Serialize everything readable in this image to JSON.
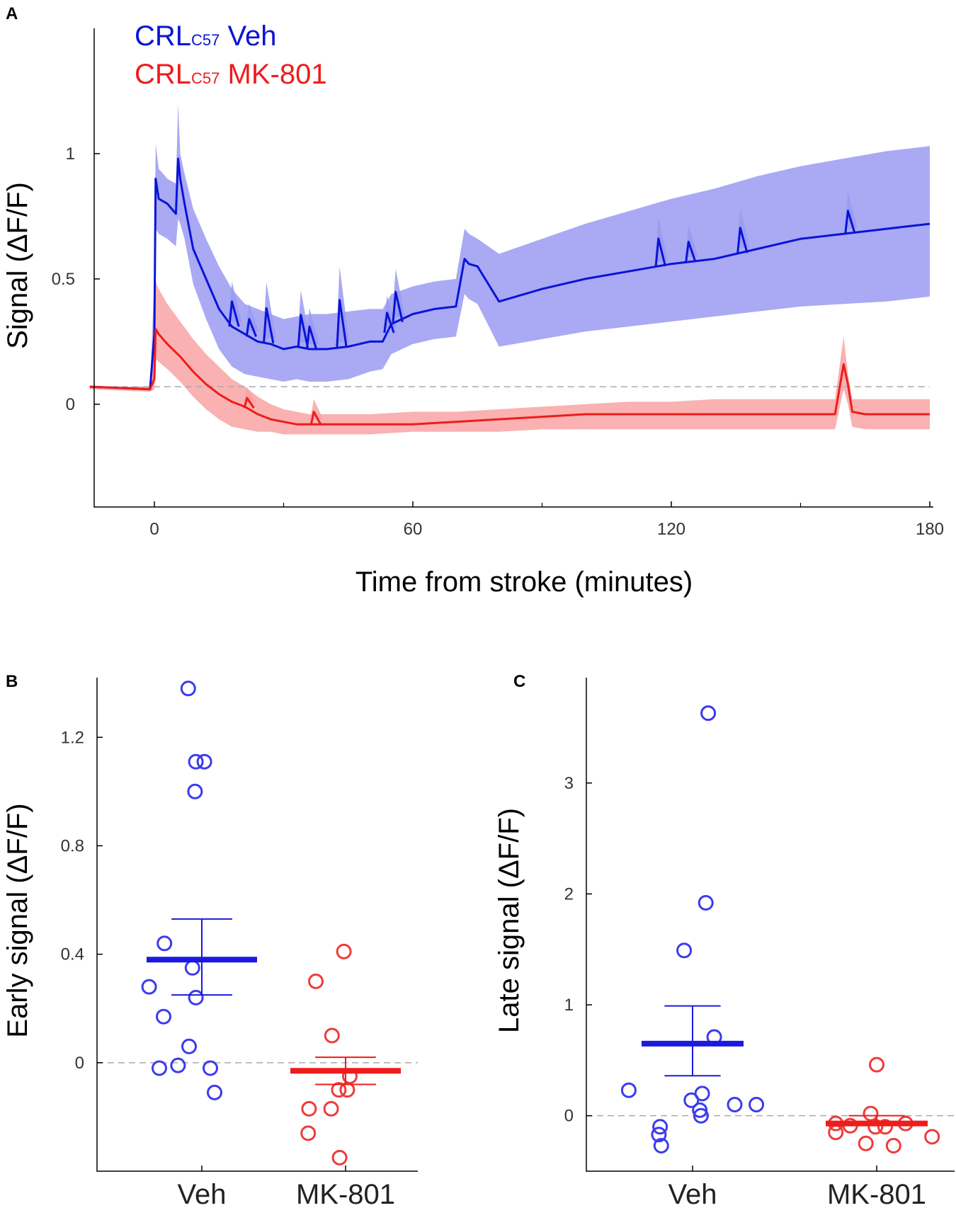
{
  "chart_data": [
    {
      "panel": "A",
      "type": "line",
      "xlabel": "Time from stroke (minutes)",
      "ylabel": "Signal (ΔF/F)",
      "xlim": [
        -15,
        181
      ],
      "ylim": [
        -0.41,
        1.5
      ],
      "xticks": [
        0,
        60,
        120,
        180
      ],
      "yticks": [
        0,
        0.5,
        1
      ],
      "xtick_labels": [
        "0",
        "60",
        "120",
        "180"
      ],
      "ytick_labels": [
        "0",
        "0.5",
        "1"
      ],
      "legend": [
        {
          "main": "CRL",
          "sub": "C57",
          "rest": " Veh",
          "color": "#0a14d6"
        },
        {
          "main": "CRL",
          "sub": "C57",
          "rest": " MK-801",
          "color": "#ee1c1c"
        }
      ],
      "baseline": 0.07,
      "series": [
        {
          "name": "CRLC57 Veh",
          "color": "#0a14d6",
          "band_color": "#9a9af2",
          "x": [
            -15,
            -1,
            0,
            0.3,
            1,
            3,
            5,
            5.5,
            6,
            7,
            9,
            12,
            15,
            18,
            21,
            24,
            27,
            30,
            33,
            36,
            40,
            45,
            50,
            53,
            55,
            60,
            65,
            70,
            72,
            73,
            75,
            80,
            90,
            100,
            110,
            120,
            130,
            140,
            150,
            160,
            170,
            180
          ],
          "y": [
            0.07,
            0.06,
            0.28,
            0.9,
            0.82,
            0.8,
            0.76,
            0.98,
            0.9,
            0.8,
            0.62,
            0.5,
            0.38,
            0.31,
            0.28,
            0.25,
            0.24,
            0.22,
            0.23,
            0.22,
            0.22,
            0.23,
            0.25,
            0.25,
            0.32,
            0.36,
            0.38,
            0.39,
            0.58,
            0.56,
            0.55,
            0.41,
            0.46,
            0.5,
            0.53,
            0.56,
            0.58,
            0.62,
            0.66,
            0.68,
            0.7,
            0.72
          ],
          "upper": [
            0.07,
            0.07,
            0.5,
            1.04,
            0.94,
            0.9,
            0.88,
            1.2,
            1.0,
            0.92,
            0.78,
            0.66,
            0.55,
            0.46,
            0.4,
            0.38,
            0.36,
            0.34,
            0.35,
            0.36,
            0.36,
            0.37,
            0.38,
            0.38,
            0.44,
            0.47,
            0.49,
            0.5,
            0.7,
            0.68,
            0.66,
            0.6,
            0.66,
            0.72,
            0.77,
            0.82,
            0.86,
            0.91,
            0.95,
            0.98,
            1.01,
            1.03
          ],
          "lower": [
            0.07,
            0.06,
            0.1,
            0.7,
            0.68,
            0.66,
            0.63,
            0.74,
            0.72,
            0.66,
            0.48,
            0.34,
            0.22,
            0.15,
            0.12,
            0.11,
            0.1,
            0.09,
            0.1,
            0.09,
            0.09,
            0.1,
            0.13,
            0.14,
            0.2,
            0.24,
            0.26,
            0.27,
            0.44,
            0.42,
            0.4,
            0.23,
            0.26,
            0.29,
            0.31,
            0.33,
            0.35,
            0.37,
            0.39,
            0.4,
            0.41,
            0.43
          ],
          "spikes": [
            {
              "x": 18,
              "h": 0.1
            },
            {
              "x": 22,
              "h": 0.07
            },
            {
              "x": 26,
              "h": 0.14
            },
            {
              "x": 34,
              "h": 0.13
            },
            {
              "x": 36,
              "h": 0.09
            },
            {
              "x": 43,
              "h": 0.19
            },
            {
              "x": 54,
              "h": 0.08
            },
            {
              "x": 56,
              "h": 0.12
            },
            {
              "x": 117,
              "h": 0.11
            },
            {
              "x": 124,
              "h": 0.08
            },
            {
              "x": 136,
              "h": 0.1
            },
            {
              "x": 161,
              "h": 0.09
            }
          ]
        },
        {
          "name": "CRLC57 MK-801",
          "color": "#ee1c1c",
          "band_color": "#f9a3a3",
          "x": [
            -15,
            -1,
            0,
            0.3,
            1,
            3,
            6,
            9,
            12,
            15,
            18,
            21,
            24,
            27,
            30,
            33,
            36,
            40,
            50,
            60,
            70,
            80,
            90,
            100,
            110,
            120,
            130,
            140,
            150,
            158,
            160,
            161,
            162,
            165,
            170,
            180
          ],
          "y": [
            0.07,
            0.06,
            0.1,
            0.3,
            0.28,
            0.24,
            0.19,
            0.13,
            0.08,
            0.04,
            0.01,
            -0.01,
            -0.04,
            -0.06,
            -0.07,
            -0.08,
            -0.08,
            -0.08,
            -0.08,
            -0.08,
            -0.07,
            -0.06,
            -0.05,
            -0.04,
            -0.04,
            -0.04,
            -0.04,
            -0.04,
            -0.04,
            -0.04,
            0.16,
            0.08,
            -0.03,
            -0.04,
            -0.04,
            -0.04
          ],
          "upper": [
            0.07,
            0.07,
            0.2,
            0.49,
            0.46,
            0.4,
            0.33,
            0.26,
            0.2,
            0.15,
            0.1,
            0.07,
            0.03,
            0.0,
            -0.02,
            -0.03,
            -0.04,
            -0.04,
            -0.04,
            -0.03,
            -0.03,
            -0.02,
            -0.01,
            0.0,
            0.01,
            0.01,
            0.02,
            0.02,
            0.02,
            0.02,
            0.27,
            0.12,
            0.02,
            0.02,
            0.02,
            0.02
          ],
          "lower": [
            0.06,
            0.05,
            0.06,
            0.18,
            0.17,
            0.14,
            0.09,
            0.03,
            -0.02,
            -0.06,
            -0.09,
            -0.1,
            -0.11,
            -0.11,
            -0.12,
            -0.12,
            -0.12,
            -0.12,
            -0.12,
            -0.11,
            -0.11,
            -0.11,
            -0.1,
            -0.1,
            -0.1,
            -0.1,
            -0.1,
            -0.1,
            -0.1,
            -0.1,
            0.06,
            0.0,
            -0.09,
            -0.1,
            -0.1,
            -0.1
          ],
          "spikes": [
            {
              "x": 21.5,
              "h": 0.04
            },
            {
              "x": 37,
              "h": 0.05
            }
          ]
        }
      ]
    },
    {
      "panel": "B",
      "type": "scatter",
      "ylabel": "Early signal (ΔF/F)",
      "categories": [
        "Veh",
        "MK-801"
      ],
      "ylim": [
        -0.4,
        1.42
      ],
      "yticks": [
        0,
        0.4,
        0.8,
        1.2
      ],
      "ytick_labels": [
        "0",
        "0.4",
        "0.8",
        "1.2"
      ],
      "baseline": 0,
      "groups": [
        {
          "name": "Veh",
          "color": "#3b3bee",
          "points": [
            {
              "dx": -0.16,
              "y": 1.38
            },
            {
              "dx": -0.07,
              "y": 1.11
            },
            {
              "dx": 0.03,
              "y": 1.11
            },
            {
              "dx": -0.08,
              "y": 1.0
            },
            {
              "dx": -0.44,
              "y": 0.44
            },
            {
              "dx": -0.11,
              "y": 0.35
            },
            {
              "dx": -0.62,
              "y": 0.28
            },
            {
              "dx": -0.07,
              "y": 0.24
            },
            {
              "dx": -0.45,
              "y": 0.17
            },
            {
              "dx": -0.15,
              "y": 0.06
            },
            {
              "dx": -0.5,
              "y": -0.02
            },
            {
              "dx": -0.28,
              "y": -0.01
            },
            {
              "dx": 0.1,
              "y": -0.02
            },
            {
              "dx": 0.15,
              "y": -0.11
            }
          ],
          "mean": 0.38,
          "sem_upper": 0.53,
          "sem_lower": 0.25
        },
        {
          "name": "MK-801",
          "color": "#ee3b3b",
          "points": [
            {
              "dx": -0.02,
              "y": 0.41
            },
            {
              "dx": -0.35,
              "y": 0.3
            },
            {
              "dx": -0.16,
              "y": 0.1
            },
            {
              "dx": 0.05,
              "y": -0.05
            },
            {
              "dx": 0.02,
              "y": -0.1
            },
            {
              "dx": -0.08,
              "y": -0.1
            },
            {
              "dx": -0.43,
              "y": -0.17
            },
            {
              "dx": -0.17,
              "y": -0.17
            },
            {
              "dx": -0.44,
              "y": -0.26
            },
            {
              "dx": -0.07,
              "y": -0.35
            }
          ],
          "mean": -0.03,
          "sem_upper": 0.02,
          "sem_lower": -0.08
        }
      ]
    },
    {
      "panel": "C",
      "type": "scatter",
      "ylabel": "Late signal (ΔF/F)",
      "categories": [
        "Veh",
        "MK-801"
      ],
      "ylim": [
        -0.5,
        3.95
      ],
      "yticks": [
        0,
        1,
        2,
        3
      ],
      "ytick_labels": [
        "0",
        "1",
        "2",
        "3"
      ],
      "baseline": 0,
      "groups": [
        {
          "name": "Veh",
          "color": "#3b3bee",
          "points": [
            {
              "dx": 0.13,
              "y": 3.63
            },
            {
              "dx": 0.11,
              "y": 1.92
            },
            {
              "dx": -0.07,
              "y": 1.49
            },
            {
              "dx": 0.18,
              "y": 0.71
            },
            {
              "dx": -0.53,
              "y": 0.23
            },
            {
              "dx": 0.08,
              "y": 0.2
            },
            {
              "dx": -0.01,
              "y": 0.14
            },
            {
              "dx": 0.35,
              "y": 0.1
            },
            {
              "dx": 0.53,
              "y": 0.1
            },
            {
              "dx": 0.06,
              "y": 0.05
            },
            {
              "dx": 0.07,
              "y": 0.0
            },
            {
              "dx": -0.27,
              "y": -0.1
            },
            {
              "dx": -0.28,
              "y": -0.17
            },
            {
              "dx": -0.26,
              "y": -0.27
            }
          ],
          "mean": 0.65,
          "sem_upper": 0.99,
          "sem_lower": 0.36
        },
        {
          "name": "MK-801",
          "color": "#ee3b3b",
          "points": [
            {
              "dx": 0.0,
              "y": 0.46
            },
            {
              "dx": -0.05,
              "y": 0.02
            },
            {
              "dx": -0.34,
              "y": -0.07
            },
            {
              "dx": -0.22,
              "y": -0.09
            },
            {
              "dx": -0.01,
              "y": -0.1
            },
            {
              "dx": 0.07,
              "y": -0.1
            },
            {
              "dx": 0.24,
              "y": -0.07
            },
            {
              "dx": -0.34,
              "y": -0.15
            },
            {
              "dx": 0.46,
              "y": -0.19
            },
            {
              "dx": -0.09,
              "y": -0.25
            },
            {
              "dx": 0.14,
              "y": -0.27
            }
          ],
          "mean": -0.07,
          "sem_upper": 0.0,
          "sem_lower": -0.07
        }
      ]
    }
  ]
}
